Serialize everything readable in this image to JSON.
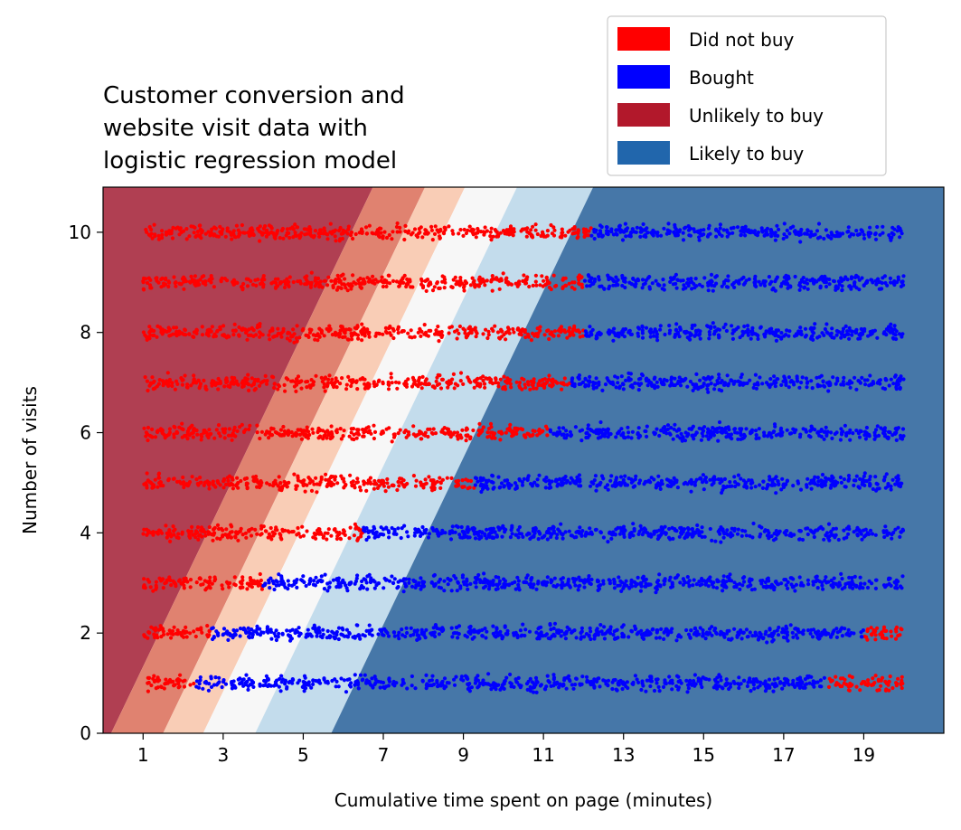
{
  "chart_data": {
    "type": "scatter",
    "title_lines": [
      "Customer conversion and",
      "website visit data with",
      "logistic regression model"
    ],
    "xlabel": "Cumulative time spent on page (minutes)",
    "ylabel": "Number of visits",
    "xlim": [
      0,
      21
    ],
    "ylim": [
      0,
      10.9
    ],
    "xticks": [
      1,
      3,
      5,
      7,
      9,
      11,
      13,
      15,
      17,
      19
    ],
    "yticks": [
      0,
      2,
      4,
      6,
      8,
      10
    ],
    "grid": false,
    "legend_placement": "above-right",
    "legend": [
      {
        "label": "Did not buy",
        "color": "#ff0000"
      },
      {
        "label": "Bought",
        "color": "#0000ff"
      },
      {
        "label": "Unlikely to buy",
        "color": "#b2182b"
      },
      {
        "label": "Likely to buy",
        "color": "#2166ac"
      }
    ],
    "point_colors": {
      "did_not_buy": "#ff0000",
      "bought": "#0000ff"
    },
    "x_range": [
      1,
      20
    ],
    "jitter_y": 0.12,
    "series": [
      {
        "visits": 1,
        "did_not_buy_x": [
          [
            1,
            2.3
          ],
          [
            18.1,
            20
          ]
        ],
        "bought_x": [
          [
            2.3,
            18.1
          ]
        ]
      },
      {
        "visits": 2,
        "did_not_buy_x": [
          [
            1,
            2.7
          ],
          [
            19,
            20
          ]
        ],
        "bought_x": [
          [
            2.7,
            19
          ]
        ]
      },
      {
        "visits": 3,
        "did_not_buy_x": [
          [
            1,
            4
          ]
        ],
        "bought_x": [
          [
            4,
            20
          ]
        ]
      },
      {
        "visits": 4,
        "did_not_buy_x": [
          [
            1,
            6.5
          ]
        ],
        "bought_x": [
          [
            6.5,
            20
          ]
        ]
      },
      {
        "visits": 5,
        "did_not_buy_x": [
          [
            1,
            9.3
          ]
        ],
        "bought_x": [
          [
            9.3,
            20
          ]
        ]
      },
      {
        "visits": 6,
        "did_not_buy_x": [
          [
            1,
            11.1
          ]
        ],
        "bought_x": [
          [
            11.1,
            20
          ]
        ]
      },
      {
        "visits": 7,
        "did_not_buy_x": [
          [
            1,
            11.7
          ]
        ],
        "bought_x": [
          [
            11.7,
            20
          ]
        ]
      },
      {
        "visits": 8,
        "did_not_buy_x": [
          [
            1,
            12
          ]
        ],
        "bought_x": [
          [
            12,
            20
          ]
        ]
      },
      {
        "visits": 9,
        "did_not_buy_x": [
          [
            1,
            12
          ]
        ],
        "bought_x": [
          [
            12,
            20
          ]
        ]
      },
      {
        "visits": 10,
        "did_not_buy_x": [
          [
            1,
            12.2
          ]
        ],
        "bought_x": [
          [
            12.2,
            20
          ]
        ]
      }
    ],
    "model_bands": {
      "boundaries_at_visits_0": [
        0.2,
        1.5,
        2.5,
        3.8,
        5.7
      ],
      "boundaries_slope_per_visit": 0.6,
      "colors": [
        "#b03f52",
        "#e08270",
        "#f9cdb6",
        "#f7f7f7",
        "#c3dcec",
        "#6ea9d0",
        "#4677a8"
      ]
    }
  }
}
